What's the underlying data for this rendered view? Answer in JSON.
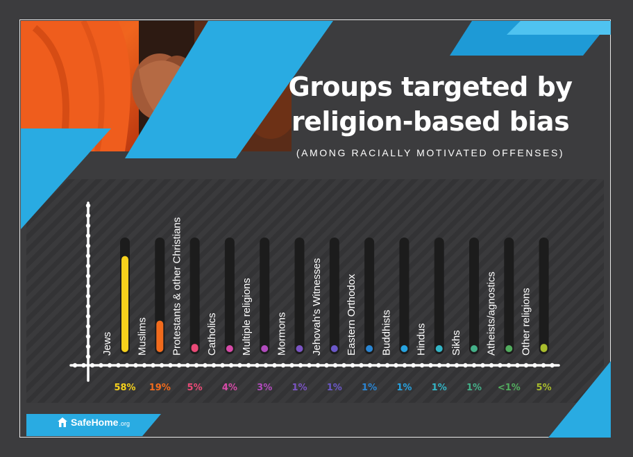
{
  "header": {
    "title_line1": "Groups targeted by",
    "title_line2": "religion-based bias",
    "subtitle": "(AMONG RACIALLY MOTIVATED OFFENSES)"
  },
  "logo": {
    "name": "SafeHome",
    "suffix": ".org",
    "icon": "house-icon"
  },
  "colors": {
    "background": "#3c3c3e",
    "accent_blue": "#29abe2",
    "track": "#1c1c1c"
  },
  "chart_data": {
    "type": "bar",
    "categories": [
      "Jews",
      "Muslims",
      "Protestants & other Christians",
      "Catholics",
      "Multiple religions",
      "Mormons",
      "Jehovah's Witnesses",
      "Eastern Orthodox",
      "Buddhists",
      "Hindus",
      "Sikhs",
      "Atheists/agnostics",
      "Other religions"
    ],
    "values": [
      58,
      19,
      5,
      4,
      3,
      1,
      1,
      1,
      1,
      1,
      1,
      0.5,
      5
    ],
    "value_labels": [
      "58%",
      "19%",
      "5%",
      "4%",
      "3%",
      "1%",
      "1%",
      "1%",
      "1%",
      "1%",
      "1%",
      "<1%",
      "5%"
    ],
    "colors": [
      "#f6d11c",
      "#f26b1d",
      "#ea4a77",
      "#d74aa8",
      "#b14bbd",
      "#7b54c4",
      "#6b58c8",
      "#2a86d4",
      "#27a3e0",
      "#33b6c7",
      "#44b089",
      "#52ad5e",
      "#a9bd2d"
    ],
    "ylim": [
      0,
      100
    ],
    "grid": false
  }
}
